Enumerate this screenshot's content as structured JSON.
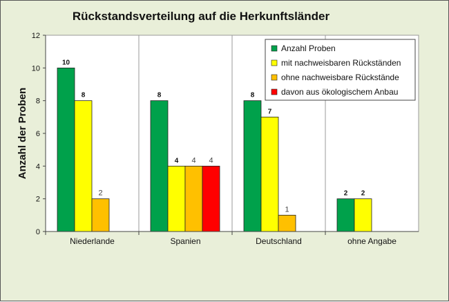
{
  "chart_data": {
    "type": "bar",
    "title": "Rückstandsverteilung auf die Herkunftsländer",
    "xlabel": "",
    "ylabel": "Anzahl der Proben",
    "ylim": [
      0,
      12
    ],
    "yticks": [
      0,
      2,
      4,
      6,
      8,
      10,
      12
    ],
    "grid": false,
    "legend_position": "top-right",
    "categories": [
      "Niederlande",
      "Spanien",
      "Deutschland",
      "ohne Angabe"
    ],
    "series": [
      {
        "name": "Anzahl Proben",
        "color": "#00a14b",
        "values": [
          10,
          8,
          8,
          2
        ]
      },
      {
        "name": "mit nachweisbaren Rückständen",
        "color": "#ffff00",
        "values": [
          8,
          4,
          7,
          2
        ]
      },
      {
        "name": "ohne nachweisbare Rückstände",
        "color": "#ffc000",
        "values": [
          2,
          4,
          1,
          null
        ]
      },
      {
        "name": "davon aus ökologischem Anbau",
        "color": "#ff0000",
        "values": [
          null,
          4,
          null,
          null
        ]
      }
    ],
    "data_labels": [
      [
        "10",
        "8",
        "8",
        "2"
      ],
      [
        "8",
        "4",
        "7",
        "2"
      ],
      [
        "2",
        "4",
        "1",
        null
      ],
      [
        null,
        "4",
        null,
        null
      ]
    ]
  }
}
